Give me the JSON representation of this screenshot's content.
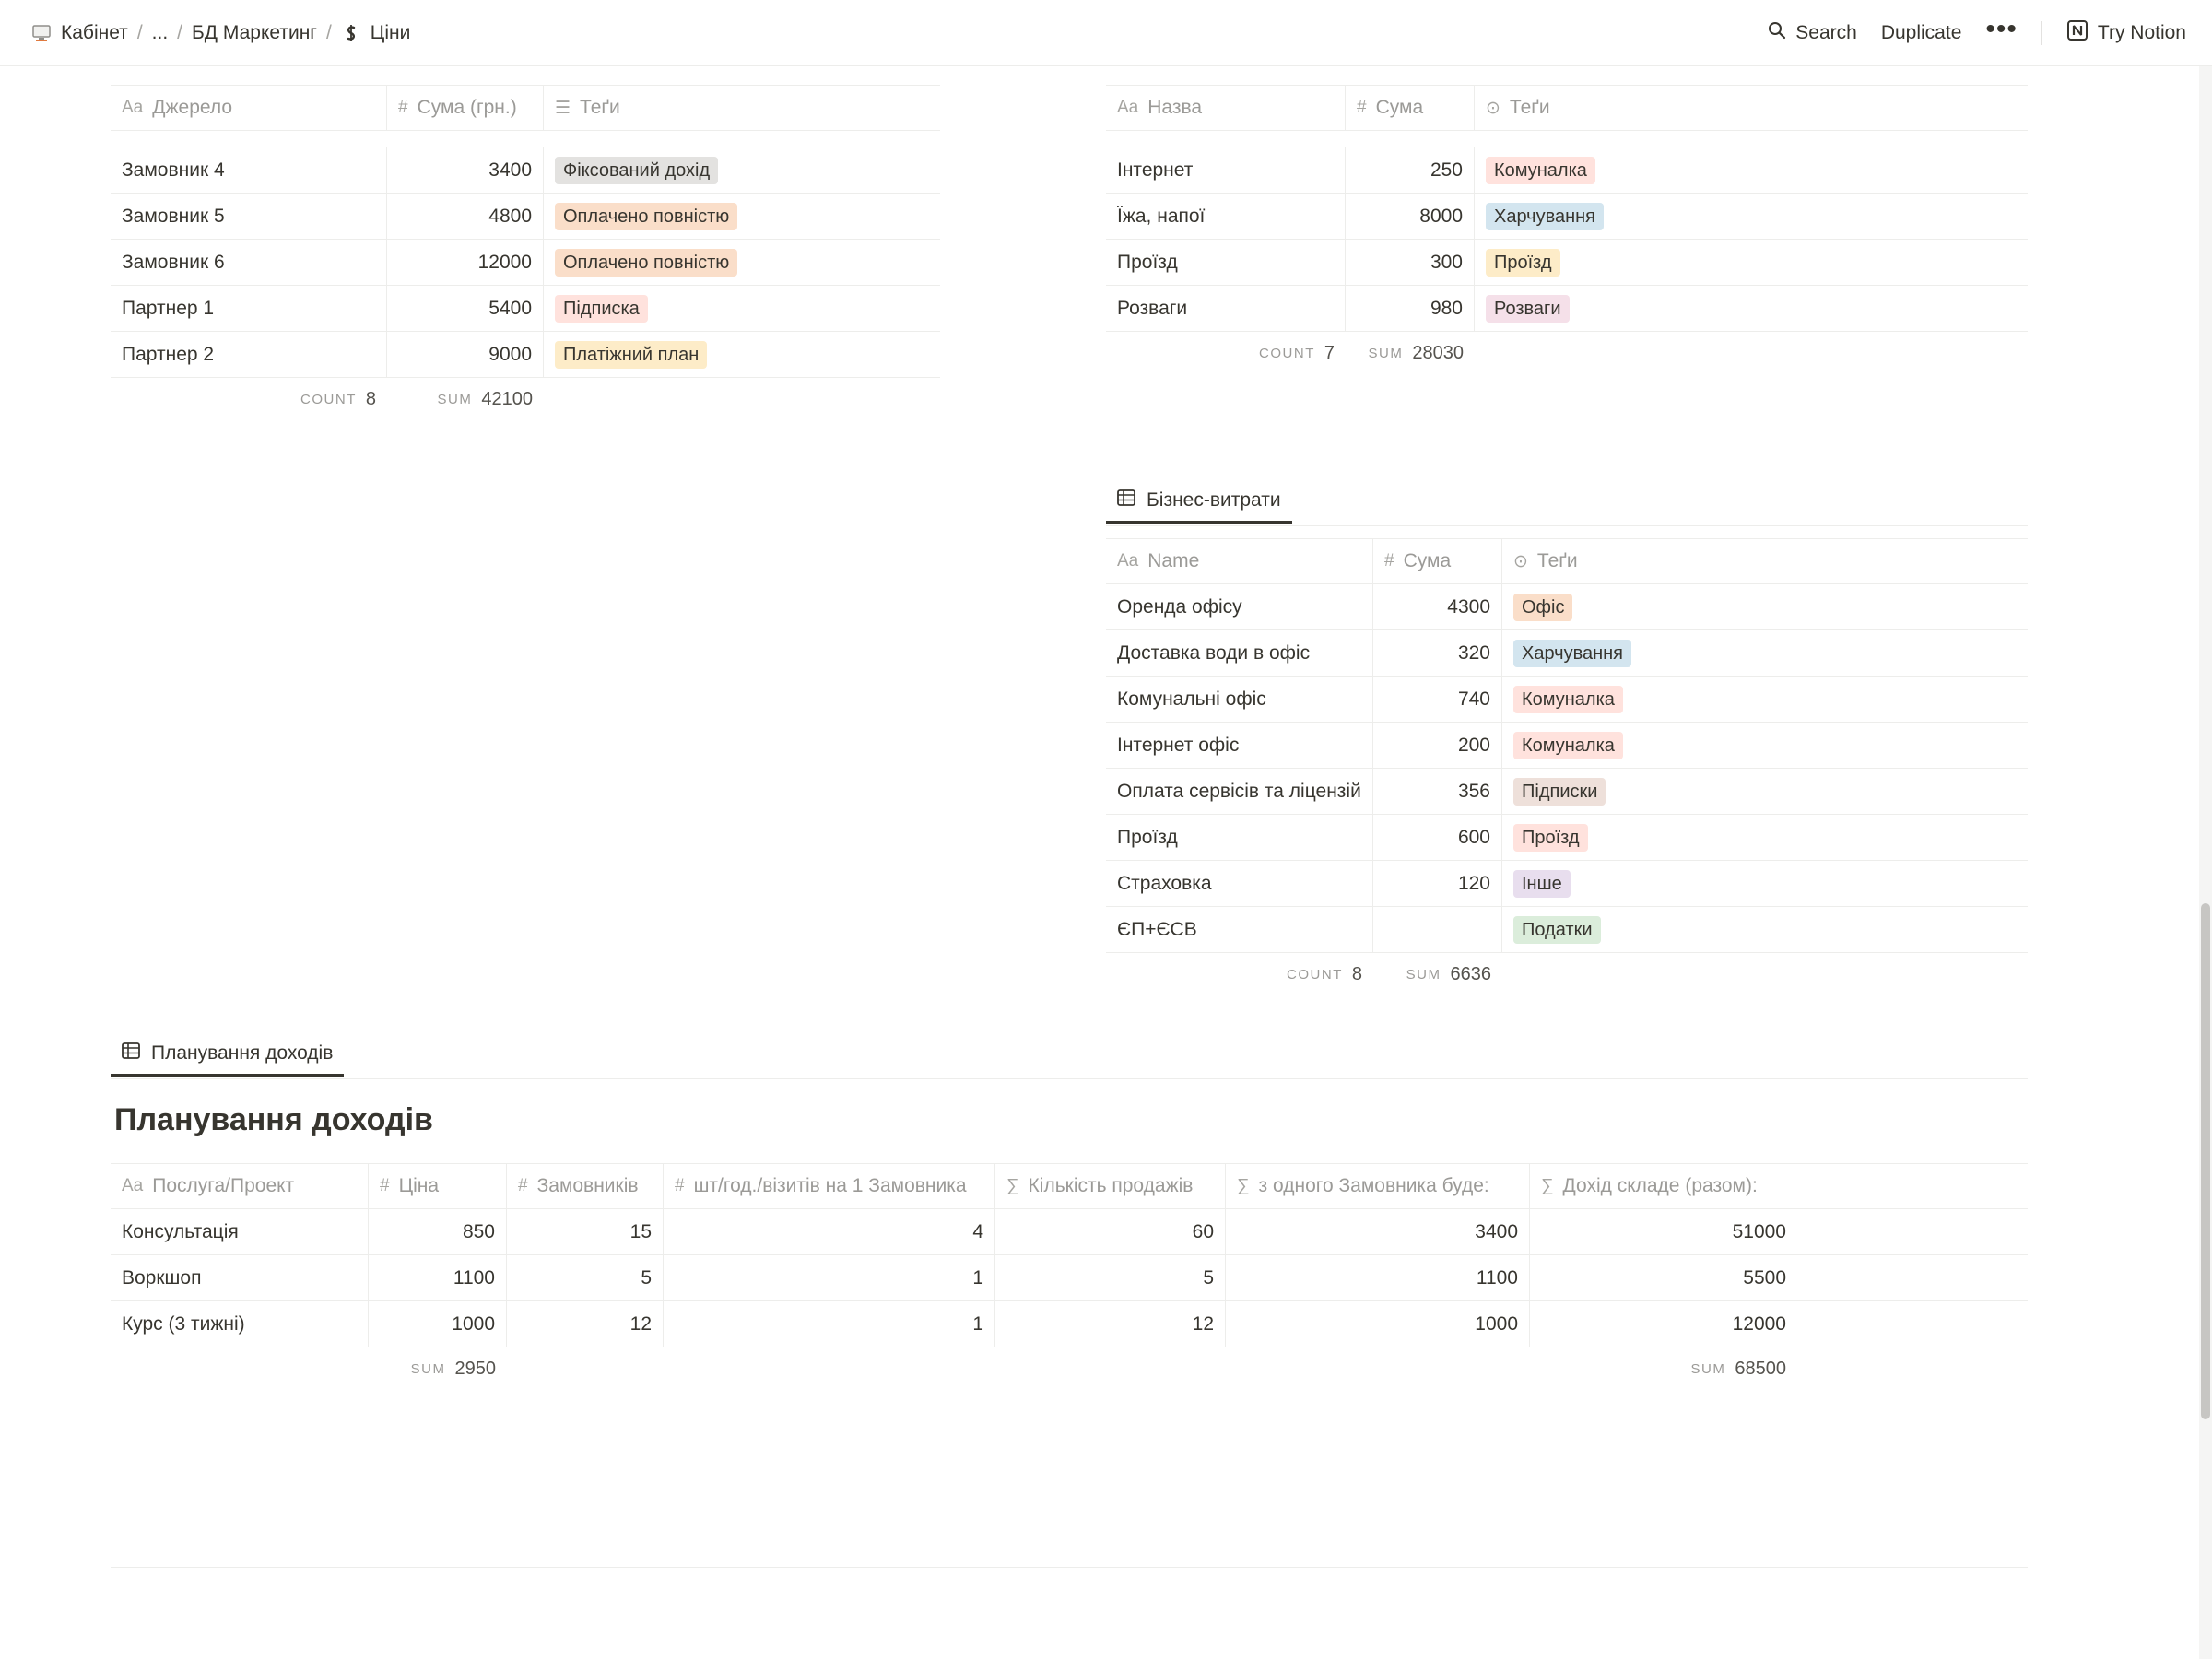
{
  "breadcrumbs": [
    {
      "label": "Кабінет",
      "icon": "cabinet-icon"
    },
    {
      "label": "..."
    },
    {
      "label": "БД Маркетинг"
    },
    {
      "label": "Ціни",
      "icon": "price-icon"
    }
  ],
  "topbar": {
    "search_label": "Search",
    "duplicate_label": "Duplicate",
    "more_label": "•••",
    "try_notion_label": "Try Notion"
  },
  "income_table": {
    "headers": [
      {
        "icon": "Aa",
        "label": "Джерело"
      },
      {
        "icon": "#",
        "label": "Сума (грн.)"
      },
      {
        "icon": "☰",
        "label": "Теґи"
      }
    ],
    "rows": [
      {
        "name": "Замовник 4",
        "amount": "3400",
        "tag": "Фіксований дохід",
        "tag_color": "#e3e2e0"
      },
      {
        "name": "Замовник 5",
        "amount": "4800",
        "tag": "Оплачено повністю",
        "tag_color": "#fadec9"
      },
      {
        "name": "Замовник 6",
        "amount": "12000",
        "tag": "Оплачено повністю",
        "tag_color": "#fadec9"
      },
      {
        "name": "Партнер 1",
        "amount": "5400",
        "tag": "Підписка",
        "tag_color": "#ffe2dd"
      },
      {
        "name": "Партнер 2",
        "amount": "9000",
        "tag": "Платіжний план",
        "tag_color": "#fdecc8"
      }
    ],
    "count_label": "COUNT",
    "count_value": "8",
    "sum_label": "SUM",
    "sum_value": "42100"
  },
  "personal_expenses": {
    "headers": [
      {
        "icon": "Aa",
        "label": "Назва"
      },
      {
        "icon": "#",
        "label": "Сума"
      },
      {
        "icon": "⊙",
        "label": "Теґи"
      }
    ],
    "rows": [
      {
        "name": "Інтернет",
        "amount": "250",
        "tag": "Комуналка",
        "tag_color": "#ffe2dd"
      },
      {
        "name": "Їжа, напої",
        "amount": "8000",
        "tag": "Харчування",
        "tag_color": "#d3e5ef"
      },
      {
        "name": "Проїзд",
        "amount": "300",
        "tag": "Проїзд",
        "tag_color": "#fdecc8"
      },
      {
        "name": "Розваги",
        "amount": "980",
        "tag": "Розваги",
        "tag_color": "#f5e0e9"
      }
    ],
    "count_label": "COUNT",
    "count_value": "7",
    "sum_label": "SUM",
    "sum_value": "28030"
  },
  "business_expenses": {
    "tab_label": "Бізнес-витрати",
    "headers": [
      {
        "icon": "Aa",
        "label": "Name"
      },
      {
        "icon": "#",
        "label": "Сума"
      },
      {
        "icon": "⊙",
        "label": "Теґи"
      }
    ],
    "rows": [
      {
        "name": "Оренда офісу",
        "amount": "4300",
        "tag": "Офіс",
        "tag_color": "#fadec9"
      },
      {
        "name": "Доставка води в офіс",
        "amount": "320",
        "tag": "Харчування",
        "tag_color": "#d3e5ef"
      },
      {
        "name": "Комунальні офіс",
        "amount": "740",
        "tag": "Комуналка",
        "tag_color": "#ffe2dd"
      },
      {
        "name": "Інтернет офіс",
        "amount": "200",
        "tag": "Комуналка",
        "tag_color": "#ffe2dd"
      },
      {
        "name": "Оплата сервісів та ліцензій",
        "amount": "356",
        "tag": "Підписки",
        "tag_color": "#eee0da"
      },
      {
        "name": "Проїзд",
        "amount": "600",
        "tag": "Проїзд",
        "tag_color": "#ffe2dd"
      },
      {
        "name": "Страховка",
        "amount": "120",
        "tag": "Інше",
        "tag_color": "#e8deee"
      },
      {
        "name": "ЄП+ЄСВ",
        "amount": "",
        "tag": "Податки",
        "tag_color": "#dbeddb"
      }
    ],
    "count_label": "COUNT",
    "count_value": "8",
    "sum_label": "SUM",
    "sum_value": "6636"
  },
  "income_planning": {
    "tab_label": "Планування доходів",
    "title": "Планування доходів",
    "headers": [
      {
        "icon": "Aa",
        "label": "Послуга/Проект"
      },
      {
        "icon": "#",
        "label": "Ціна"
      },
      {
        "icon": "#",
        "label": "Замовників"
      },
      {
        "icon": "#",
        "label": "шт/год./візитів на 1 Замовника"
      },
      {
        "icon": "∑",
        "label": "Кількість продажів"
      },
      {
        "icon": "∑",
        "label": "з одного Замовника буде:"
      },
      {
        "icon": "∑",
        "label": "Дохід складе (разом):"
      }
    ],
    "rows": [
      {
        "name": "Консультація",
        "price": "850",
        "clients": "15",
        "per_client": "4",
        "sales": "60",
        "per_client_income": "3400",
        "total": "51000"
      },
      {
        "name": "Воркшоп",
        "price": "1100",
        "clients": "5",
        "per_client": "1",
        "sales": "5",
        "per_client_income": "1100",
        "total": "5500"
      },
      {
        "name": "Курс (3 тижні)",
        "price": "1000",
        "clients": "12",
        "per_client": "1",
        "sales": "12",
        "per_client_income": "1000",
        "total": "12000"
      }
    ],
    "price_sum_label": "SUM",
    "price_sum_value": "2950",
    "total_sum_label": "SUM",
    "total_sum_value": "68500"
  }
}
